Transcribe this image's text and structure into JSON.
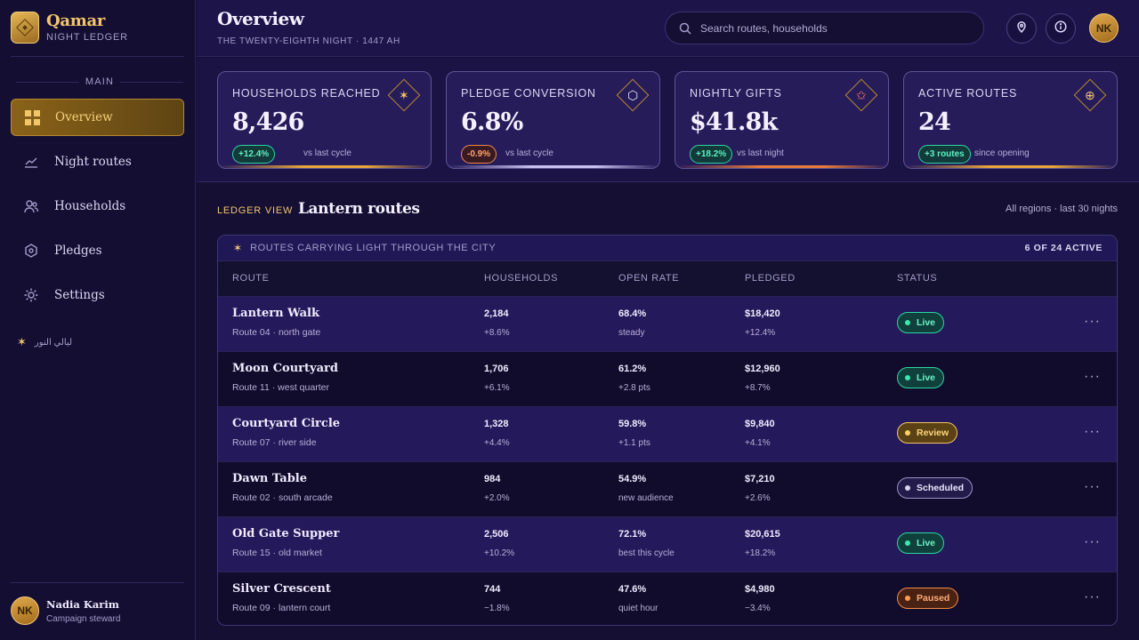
{
  "brand": {
    "name": "Qamar",
    "subtitle": "NIGHT LEDGER"
  },
  "sidebar": {
    "section_label": "MAIN",
    "items": [
      {
        "label": "Overview",
        "icon": "grid-icon",
        "active": true
      },
      {
        "label": "Night routes",
        "icon": "trend-line-icon"
      },
      {
        "label": "Households",
        "icon": "people-icon"
      },
      {
        "label": "Pledges",
        "icon": "shield-icon"
      },
      {
        "label": "Settings",
        "icon": "gear-icon"
      }
    ],
    "arabic_note": "ليالي النور"
  },
  "user": {
    "initials": "NK",
    "name": "Nadia Karim",
    "role": "Campaign steward"
  },
  "header": {
    "title": "Overview",
    "subtitle": "THE TWENTY-EIGHTH NIGHT · 1447 AH",
    "search_placeholder": "Search routes, households",
    "avatar_initials": "NK"
  },
  "stats": [
    {
      "label": "HOUSEHOLDS REACHED",
      "value": "8,426",
      "delta": "+12.4%",
      "trend": "up",
      "note": "vs last cycle",
      "icon": "sparkle-icon",
      "glyph": "✶",
      "bar_color": "#e7a53a"
    },
    {
      "label": "PLEDGE CONVERSION",
      "value": "6.8%",
      "delta": "-0.9%",
      "trend": "down",
      "note": "vs last cycle",
      "icon": "hexagon-icon",
      "glyph": "⬡",
      "bar_color": "#c9c2ee"
    },
    {
      "label": "NIGHTLY GIFTS",
      "value": "$41.8k",
      "delta": "+18.2%",
      "trend": "up",
      "note": "vs last night",
      "icon": "star-outline-icon",
      "glyph": "✩",
      "bar_color": "#e87a3a"
    },
    {
      "label": "ACTIVE ROUTES",
      "value": "24",
      "delta": "+3 routes",
      "trend": "up",
      "note": "since opening",
      "icon": "target-icon",
      "glyph": "⊕",
      "bar_color": "#e7a53a"
    }
  ],
  "ledger": {
    "label": "LEDGER VIEW",
    "title": "Lantern routes",
    "meta": "All regions · last 30 nights",
    "table_title": "ROUTES CARRYING LIGHT THROUGH THE CITY",
    "table_count": "6 OF 24 ACTIVE",
    "columns": [
      "ROUTE",
      "HOUSEHOLDS",
      "OPEN RATE",
      "PLEDGED",
      "STATUS"
    ],
    "rows": [
      {
        "name": "Lantern Walk",
        "route": "Route 04 · north gate",
        "households": "2,184",
        "households_delta": "+8.6%",
        "open_rate": "68.4%",
        "open_note": "steady",
        "pledged": "$18,420",
        "pledged_delta": "+12.4%",
        "status": "Live",
        "status_type": "live"
      },
      {
        "name": "Moon Courtyard",
        "route": "Route 11 · west quarter",
        "households": "1,706",
        "households_delta": "+6.1%",
        "open_rate": "61.2%",
        "open_note": "+2.8 pts",
        "pledged": "$12,960",
        "pledged_delta": "+8.7%",
        "status": "Live",
        "status_type": "live"
      },
      {
        "name": "Courtyard Circle",
        "route": "Route 07 · river side",
        "households": "1,328",
        "households_delta": "+4.4%",
        "open_rate": "59.8%",
        "open_note": "+1.1 pts",
        "pledged": "$9,840",
        "pledged_delta": "+4.1%",
        "status": "Review",
        "status_type": "review"
      },
      {
        "name": "Dawn Table",
        "route": "Route 02 · south arcade",
        "households": "984",
        "households_delta": "+2.0%",
        "open_rate": "54.9%",
        "open_note": "new audience",
        "pledged": "$7,210",
        "pledged_delta": "+2.6%",
        "status": "Scheduled",
        "status_type": "sched"
      },
      {
        "name": "Old Gate Supper",
        "route": "Route 15 · old market",
        "households": "2,506",
        "households_delta": "+10.2%",
        "open_rate": "72.1%",
        "open_note": "best this cycle",
        "pledged": "$20,615",
        "pledged_delta": "+18.2%",
        "status": "Live",
        "status_type": "live"
      },
      {
        "name": "Silver Crescent",
        "route": "Route 09 · lantern court",
        "households": "744",
        "households_delta": "−1.8%",
        "open_rate": "47.6%",
        "open_note": "quiet hour",
        "pledged": "$4,980",
        "pledged_delta": "−3.4%",
        "status": "Paused",
        "status_type": "paused"
      }
    ]
  }
}
